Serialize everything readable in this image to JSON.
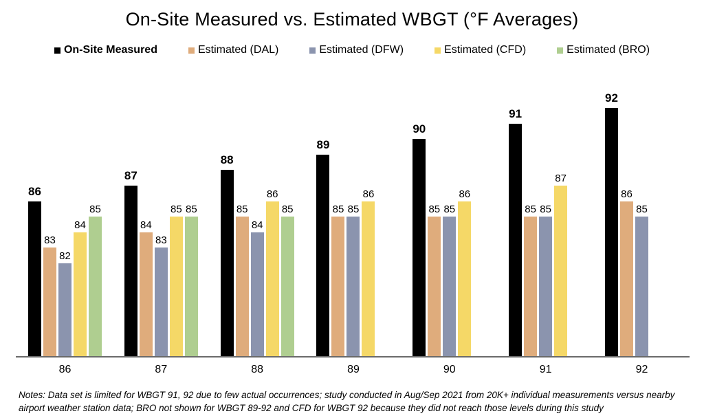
{
  "title": "On-Site Measured vs. Estimated WBGT (°F Averages)",
  "notes": "Notes: Data set is limited for WBGT 91, 92 due to few actual occurrences; study conducted in Aug/Sep 2021 from 20K+ individual measurements versus nearby airport weather station data; BRO not shown for WBGT 89-92 and CFD for WBGT 92 because they did not reach those levels during this study",
  "chart_data": {
    "type": "bar",
    "title": "On-Site Measured vs. Estimated WBGT (°F Averages)",
    "categories": [
      "86",
      "87",
      "88",
      "89",
      "90",
      "91",
      "92"
    ],
    "xlabel": "",
    "ylabel": "",
    "ylim": [
      76,
      92.5
    ],
    "grid": false,
    "legend_position": "top",
    "axis_color": "#6a6a6a",
    "series": [
      {
        "name": "On-Site Measured",
        "color": "#000000",
        "bold_labels": true,
        "values": [
          86,
          87,
          88,
          89,
          90,
          91,
          92
        ]
      },
      {
        "name": "Estimated (DAL)",
        "color": "#DFAC7C",
        "bold_labels": false,
        "values": [
          83,
          84,
          85,
          85,
          85,
          85,
          86
        ]
      },
      {
        "name": "Estimated (DFW)",
        "color": "#8B94AE",
        "bold_labels": false,
        "values": [
          82,
          83,
          84,
          85,
          85,
          85,
          85
        ]
      },
      {
        "name": "Estimated (CFD)",
        "color": "#F5D867",
        "bold_labels": false,
        "values": [
          84,
          85,
          86,
          86,
          86,
          87,
          null
        ]
      },
      {
        "name": "Estimated (BRO)",
        "color": "#AFCE90",
        "bold_labels": false,
        "values": [
          85,
          85,
          85,
          null,
          null,
          null,
          null
        ]
      }
    ]
  }
}
